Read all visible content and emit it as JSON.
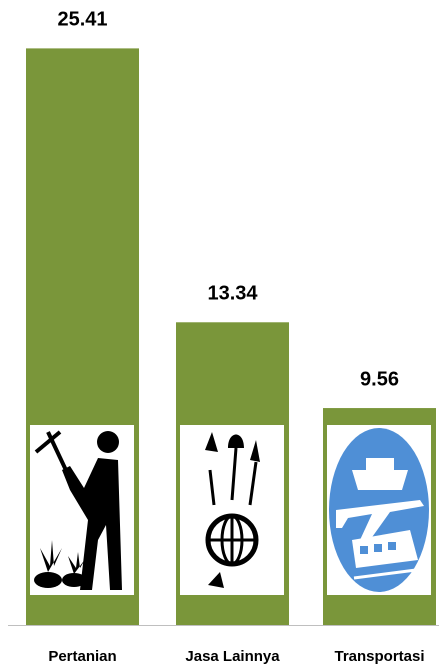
{
  "chart_data": {
    "type": "bar",
    "categories": [
      "Pertanian",
      "Jasa Lainnya",
      "Transportasi"
    ],
    "values": [
      25.41,
      13.34,
      9.56
    ],
    "color": "#7a963a",
    "ylim": [
      0,
      26
    ]
  }
}
